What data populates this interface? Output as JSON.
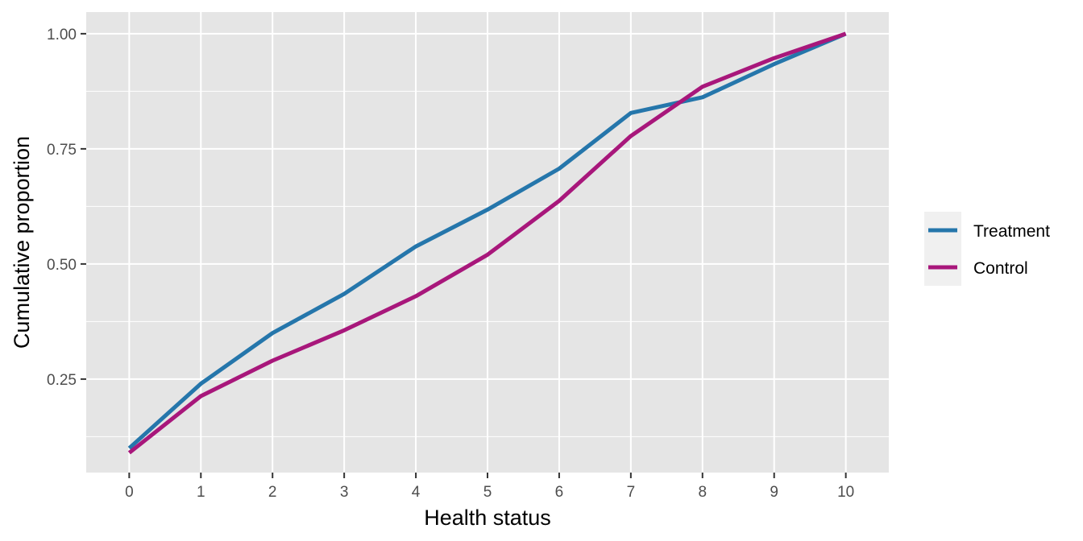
{
  "chart_data": {
    "type": "line",
    "title": "",
    "xlabel": "Health status",
    "ylabel": "Cumulative proportion",
    "x": [
      0,
      1,
      2,
      3,
      4,
      5,
      6,
      7,
      8,
      9,
      10
    ],
    "x_ticks": [
      "0",
      "1",
      "2",
      "3",
      "4",
      "5",
      "6",
      "7",
      "8",
      "9",
      "10"
    ],
    "y_ticks": [
      "0.25",
      "0.50",
      "0.75",
      "1.00"
    ],
    "y_tick_values": [
      0.25,
      0.5,
      0.75,
      1.0
    ],
    "xlim": [
      -0.6,
      10.6
    ],
    "ylim": [
      0.047,
      1.047
    ],
    "grid": true,
    "legend_position": "right",
    "background": "#e5e5e5",
    "series": [
      {
        "name": "Treatment",
        "color": "#2576ab",
        "values": [
          0.1,
          0.24,
          0.35,
          0.435,
          0.538,
          0.618,
          0.707,
          0.828,
          0.862,
          0.934,
          1.0
        ]
      },
      {
        "name": "Control",
        "color": "#a8177b",
        "values": [
          0.09,
          0.213,
          0.29,
          0.356,
          0.43,
          0.52,
          0.637,
          0.778,
          0.885,
          0.947,
          1.0
        ]
      }
    ]
  }
}
